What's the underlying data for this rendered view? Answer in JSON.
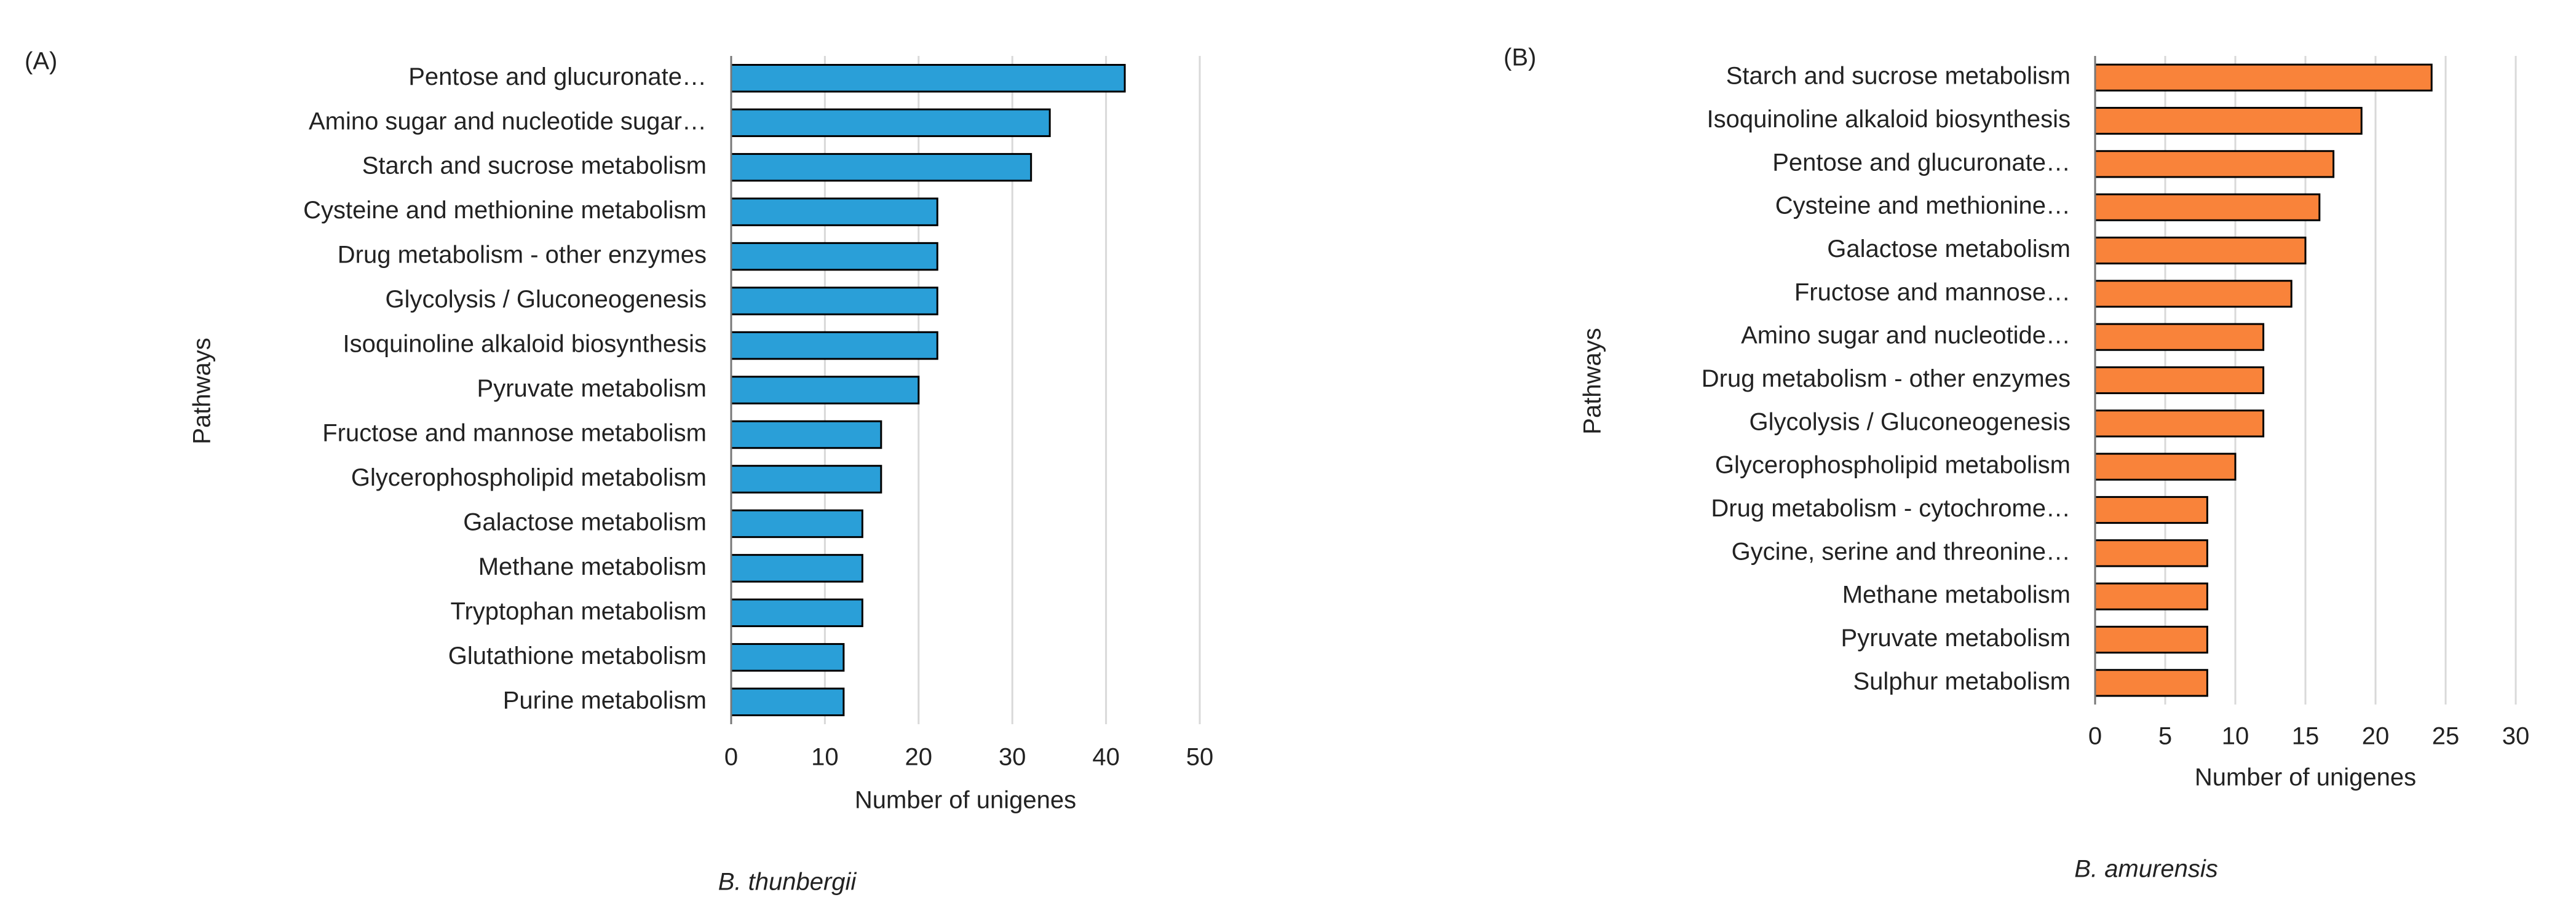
{
  "chart_data": [
    {
      "type": "bar",
      "orientation": "horizontal",
      "panel_label": "(A)",
      "ylabel": "Pathways",
      "xlabel": "Number of unigenes",
      "caption": "B. thunbergii",
      "categories": [
        "Pentose and glucuronate…",
        "Amino sugar and nucleotide sugar…",
        "Starch and sucrose metabolism",
        "Cysteine and methionine metabolism",
        "Drug metabolism - other enzymes",
        "Glycolysis / Gluconeogenesis",
        "Isoquinoline alkaloid biosynthesis",
        "Pyruvate metabolism",
        "Fructose and mannose metabolism",
        "Glycerophospholipid metabolism",
        "Galactose metabolism",
        "Methane metabolism",
        "Tryptophan metabolism",
        "Glutathione metabolism",
        "Purine metabolism"
      ],
      "values": [
        42,
        34,
        32,
        22,
        22,
        22,
        22,
        20,
        16,
        16,
        14,
        14,
        14,
        12,
        12
      ],
      "color": "#2a9fd8",
      "xlim": [
        0,
        50
      ],
      "xticks": [
        0,
        10,
        20,
        30,
        40,
        50
      ],
      "grid": true
    },
    {
      "type": "bar",
      "orientation": "horizontal",
      "panel_label": "(B)",
      "ylabel": "Pathways",
      "xlabel": "Number of unigenes",
      "caption": "B. amurensis",
      "categories": [
        "Starch and sucrose metabolism",
        "Isoquinoline alkaloid biosynthesis",
        "Pentose and glucuronate…",
        "Cysteine and methionine…",
        "Galactose metabolism",
        "Fructose and mannose…",
        "Amino sugar and nucleotide…",
        "Drug metabolism - other enzymes",
        "Glycolysis / Gluconeogenesis",
        "Glycerophospholipid metabolism",
        "Drug metabolism - cytochrome…",
        "Gycine, serine and threonine…",
        "Methane metabolism",
        "Pyruvate metabolism",
        "Sulphur metabolism"
      ],
      "values": [
        24,
        19,
        17,
        16,
        15,
        14,
        12,
        12,
        12,
        10,
        8,
        8,
        8,
        8,
        8
      ],
      "color": "#f9833a",
      "xlim": [
        0,
        30
      ],
      "xticks": [
        0,
        5,
        10,
        15,
        20,
        25,
        30
      ],
      "grid": true
    }
  ]
}
